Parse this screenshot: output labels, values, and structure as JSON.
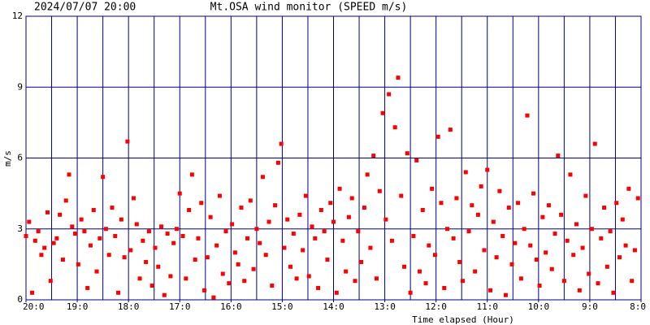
{
  "chart_data": {
    "type": "scatter",
    "timestamp": "2024/07/07 20:00",
    "title": "Mt.OSA wind monitor (SPEED m/s)",
    "y_label": "m/s",
    "x_label": "Time elapsed (Hour)",
    "color": "#ff0000",
    "grid_color": "#000080",
    "grid": true,
    "xlim": [
      0,
      12
    ],
    "ylim": [
      0,
      12
    ],
    "yticks": [
      0,
      3,
      6,
      9,
      12
    ],
    "xticks": [
      {
        "value": 0,
        "label": "20:0"
      },
      {
        "value": 1,
        "label": "19:0"
      },
      {
        "value": 2,
        "label": "18:0"
      },
      {
        "value": 3,
        "label": "17:0"
      },
      {
        "value": 4,
        "label": "16:0"
      },
      {
        "value": 5,
        "label": "15:0"
      },
      {
        "value": 6,
        "label": "14:0"
      },
      {
        "value": 7,
        "label": "13:0"
      },
      {
        "value": 8,
        "label": "12:0"
      },
      {
        "value": 9,
        "label": "11:0"
      },
      {
        "value": 10,
        "label": "10:0"
      },
      {
        "value": 11,
        "label": "9:0"
      },
      {
        "value": 12,
        "label": "8:0"
      }
    ],
    "xgrid": [
      0.5,
      1,
      1.5,
      2,
      2.5,
      3,
      3.5,
      4,
      4.5,
      5,
      5.5,
      6,
      6.5,
      7,
      7.5,
      8,
      8.5,
      9,
      9.5,
      10,
      10.5,
      11,
      11.5
    ],
    "x": [
      0,
      0.06,
      0.12,
      0.18,
      0.24,
      0.3,
      0.36,
      0.42,
      0.48,
      0.54,
      0.6,
      0.66,
      0.72,
      0.78,
      0.84,
      0.9,
      0.96,
      1.02,
      1.08,
      1.14,
      1.2,
      1.26,
      1.32,
      1.38,
      1.44,
      1.5,
      1.56,
      1.62,
      1.68,
      1.74,
      1.8,
      1.86,
      1.92,
      1.98,
      2.04,
      2.1,
      2.16,
      2.22,
      2.28,
      2.34,
      2.4,
      2.46,
      2.52,
      2.58,
      2.64,
      2.7,
      2.76,
      2.82,
      2.88,
      2.94,
      3,
      3.06,
      3.12,
      3.18,
      3.24,
      3.3,
      3.36,
      3.42,
      3.48,
      3.54,
      3.6,
      3.66,
      3.72,
      3.78,
      3.84,
      3.9,
      3.96,
      4.02,
      4.08,
      4.14,
      4.2,
      4.26,
      4.32,
      4.38,
      4.44,
      4.5,
      4.56,
      4.62,
      4.68,
      4.74,
      4.8,
      4.86,
      4.92,
      4.98,
      5.04,
      5.1,
      5.16,
      5.22,
      5.28,
      5.34,
      5.4,
      5.46,
      5.52,
      5.58,
      5.64,
      5.7,
      5.76,
      5.82,
      5.88,
      5.94,
      6,
      6.06,
      6.12,
      6.18,
      6.24,
      6.3,
      6.36,
      6.42,
      6.48,
      6.54,
      6.6,
      6.66,
      6.72,
      6.78,
      6.84,
      6.9,
      6.96,
      7.02,
      7.08,
      7.14,
      7.2,
      7.26,
      7.32,
      7.38,
      7.44,
      7.5,
      7.56,
      7.62,
      7.68,
      7.74,
      7.8,
      7.86,
      7.92,
      7.98,
      8.04,
      8.1,
      8.16,
      8.22,
      8.28,
      8.34,
      8.4,
      8.46,
      8.52,
      8.58,
      8.64,
      8.7,
      8.76,
      8.82,
      8.88,
      8.94,
      9,
      9.06,
      9.12,
      9.18,
      9.24,
      9.3,
      9.36,
      9.42,
      9.48,
      9.54,
      9.6,
      9.66,
      9.72,
      9.78,
      9.84,
      9.9,
      9.96,
      10.02,
      10.08,
      10.14,
      10.2,
      10.26,
      10.32,
      10.38,
      10.44,
      10.5,
      10.56,
      10.62,
      10.68,
      10.74,
      10.8,
      10.86,
      10.92,
      10.98,
      11.04,
      11.1,
      11.16,
      11.22,
      11.28,
      11.34,
      11.4,
      11.46,
      11.52,
      11.58,
      11.64,
      11.7,
      11.76,
      11.82,
      11.88,
      11.94
    ],
    "values": [
      2.7,
      3.3,
      0.3,
      2.5,
      2.9,
      1.9,
      2.2,
      3.7,
      0.8,
      2.4,
      2.6,
      3.6,
      1.7,
      4.2,
      5.3,
      3.1,
      2.8,
      1.5,
      3.4,
      2.9,
      0.5,
      2.3,
      3.8,
      1.2,
      2.6,
      5.2,
      3.0,
      1.9,
      3.9,
      2.7,
      0.3,
      3.4,
      1.8,
      6.7,
      2.1,
      4.3,
      3.2,
      0.9,
      2.5,
      1.6,
      2.9,
      0.6,
      2.2,
      1.4,
      3.1,
      0.2,
      2.8,
      1.0,
      2.4,
      3.0,
      4.5,
      2.7,
      0.9,
      3.8,
      5.3,
      1.7,
      2.6,
      4.1,
      0.4,
      1.8,
      3.5,
      0.1,
      2.3,
      4.4,
      1.1,
      2.9,
      0.7,
      3.2,
      2.0,
      1.5,
      3.9,
      0.8,
      2.6,
      4.2,
      1.3,
      3.0,
      2.4,
      5.2,
      1.9,
      3.3,
      0.6,
      4.0,
      5.8,
      6.6,
      2.2,
      3.4,
      1.4,
      2.8,
      0.9,
      3.6,
      2.1,
      4.4,
      1.0,
      3.1,
      2.6,
      0.5,
      3.8,
      2.9,
      1.7,
      4.1,
      3.3,
      0.3,
      4.7,
      2.5,
      1.2,
      3.5,
      4.3,
      0.8,
      2.9,
      1.6,
      3.9,
      5.3,
      2.2,
      6.1,
      0.9,
      4.6,
      7.9,
      3.4,
      8.7,
      2.5,
      7.3,
      9.4,
      4.4,
      1.4,
      6.2,
      0.3,
      2.7,
      5.9,
      1.2,
      3.8,
      0.7,
      2.3,
      4.7,
      1.9,
      6.9,
      4.1,
      0.5,
      3.0,
      7.2,
      2.6,
      4.3,
      1.6,
      0.8,
      5.4,
      2.9,
      4.0,
      1.2,
      3.6,
      4.8,
      2.1,
      5.5,
      0.4,
      3.3,
      1.8,
      4.6,
      2.7,
      0.2,
      3.9,
      1.5,
      2.4,
      4.1,
      0.9,
      3.0,
      7.8,
      2.3,
      4.5,
      1.7,
      0.6,
      3.5,
      2.0,
      4.0,
      1.3,
      2.8,
      6.1,
      3.6,
      0.8,
      2.5,
      5.3,
      1.9,
      3.2,
      0.4,
      2.2,
      4.4,
      1.1,
      3.0,
      6.6,
      0.7,
      2.6,
      3.9,
      1.4,
      2.9,
      0.3,
      4.1,
      1.8,
      3.4,
      2.3,
      4.7,
      0.8,
      2.1,
      4.3
    ]
  }
}
